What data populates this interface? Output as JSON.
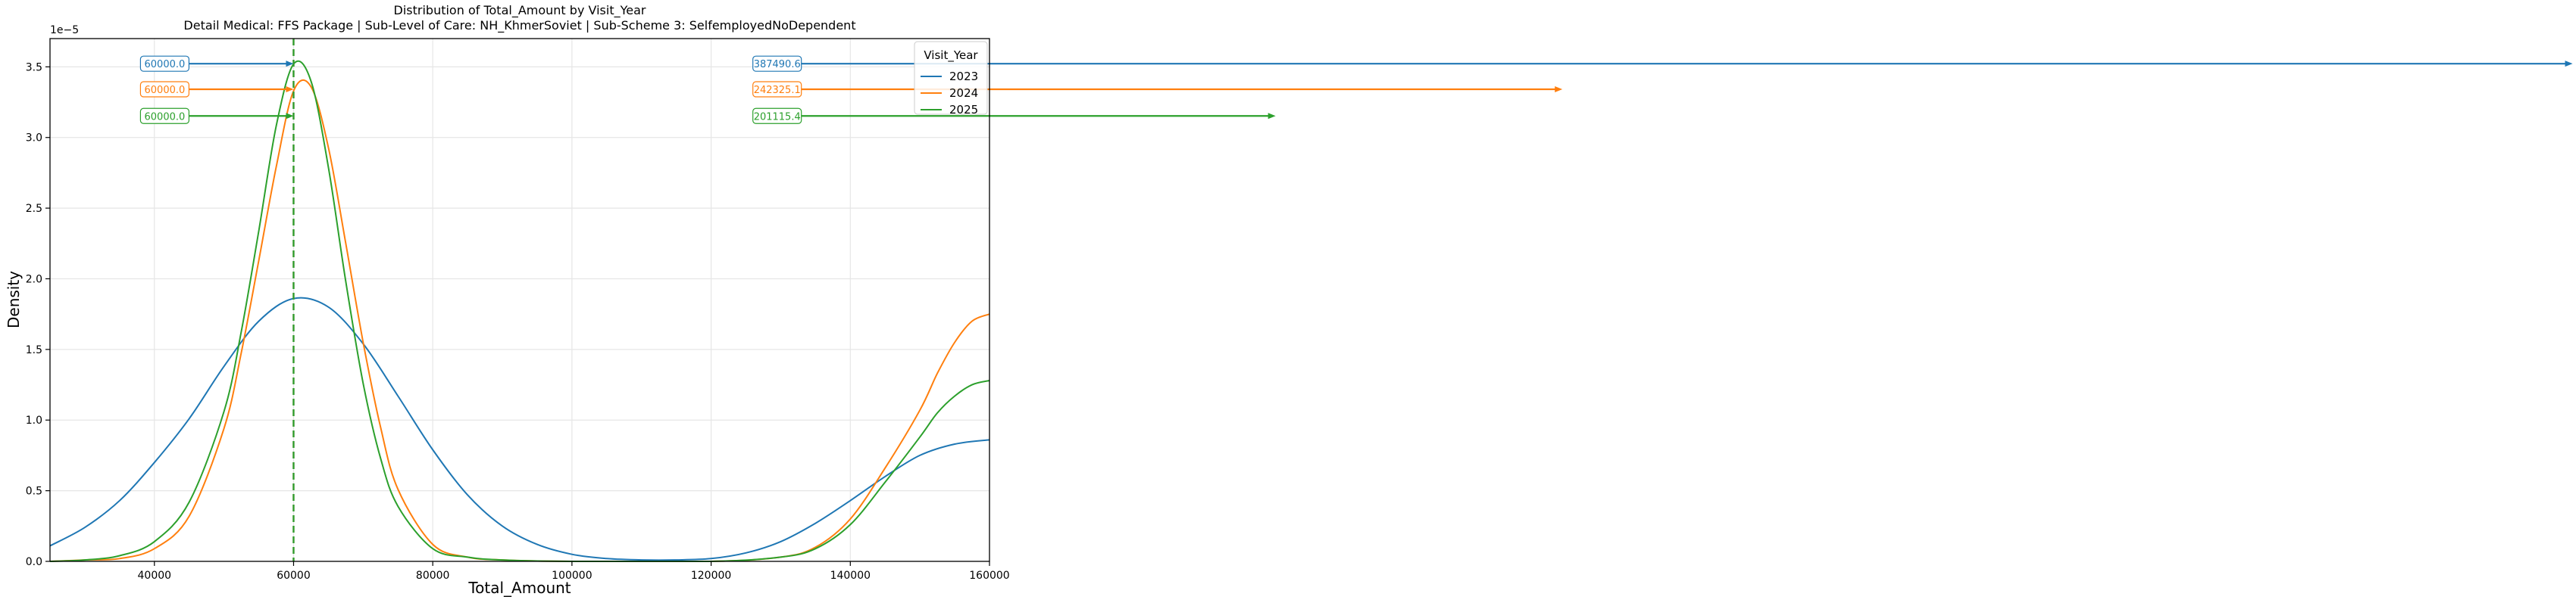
{
  "chart_data": {
    "type": "line",
    "title": "Distribution of Total_Amount by Visit_Year",
    "subtitle": "Detail Medical: FFS Package | Sub-Level of Care: NH_KhmerSoviet | Sub-Scheme 3: SelfemployedNoDependent",
    "xlabel": "Total_Amount",
    "ylabel": "Density",
    "y_scale_label": "1e−5",
    "xlim": [
      25000,
      160000
    ],
    "ylim": [
      0,
      3.7e-05
    ],
    "x_ticks": [
      40000,
      60000,
      80000,
      100000,
      120000,
      140000,
      160000
    ],
    "y_ticks": [
      0.0,
      0.5,
      1.0,
      1.5,
      2.0,
      2.5,
      3.0,
      3.5
    ],
    "x_tick_labels": [
      "40000",
      "60000",
      "80000",
      "100000",
      "120000",
      "140000",
      "160000"
    ],
    "y_tick_labels": [
      "0.0",
      "0.5",
      "1.0",
      "1.5",
      "2.0",
      "2.5",
      "3.0",
      "3.5"
    ],
    "grid": true,
    "legend": {
      "title": "Visit_Year",
      "placement": "top-right"
    },
    "median_line_x": 60000,
    "series": [
      {
        "name": "2023",
        "color": "#1f77b4",
        "x": [
          25000,
          30000,
          35000,
          40000,
          45000,
          50000,
          55000,
          60000,
          65000,
          70000,
          75000,
          80000,
          85000,
          90000,
          95000,
          100000,
          105000,
          110000,
          115000,
          120000,
          125000,
          130000,
          135000,
          140000,
          145000,
          150000,
          155000,
          160000
        ],
        "y": [
          1.1e-06,
          2.4e-06,
          4.3e-06,
          7e-06,
          1.01e-05,
          1.38e-05,
          1.7e-05,
          1.86e-05,
          1.8e-05,
          1.54e-05,
          1.17e-05,
          7.9e-06,
          4.7e-06,
          2.5e-06,
          1.2e-06,
          5e-07,
          2e-07,
          1e-07,
          1e-07,
          2e-07,
          6e-07,
          1.4e-06,
          2.7e-06,
          4.3e-06,
          6e-06,
          7.5e-06,
          8.3e-06,
          8.6e-06
        ]
      },
      {
        "name": "2024",
        "color": "#ff7f0e",
        "x": [
          25000,
          30000,
          35000,
          40000,
          45000,
          50000,
          52500,
          55000,
          57500,
          60000,
          62500,
          65000,
          67500,
          70000,
          72500,
          75000,
          80000,
          85000,
          90000,
          100000,
          120000,
          130000,
          135000,
          140000,
          145000,
          150000,
          152500,
          155000,
          157500,
          160000
        ],
        "y": [
          0,
          1e-07,
          2e-07,
          9e-07,
          3.2e-06,
          9.4e-06,
          1.48e-05,
          2.13e-05,
          2.79e-05,
          3.33e-05,
          3.36e-05,
          2.93e-05,
          2.25e-05,
          1.55e-05,
          9.5e-06,
          5.1e-06,
          1.2e-06,
          3e-07,
          1e-07,
          0,
          0,
          3e-07,
          1e-06,
          3e-06,
          6.6e-06,
          1.07e-05,
          1.33e-05,
          1.55e-05,
          1.7e-05,
          1.75e-05
        ]
      },
      {
        "name": "2025",
        "color": "#2ca02c",
        "x": [
          25000,
          30000,
          35000,
          40000,
          45000,
          50000,
          52500,
          55000,
          57500,
          60000,
          62500,
          65000,
          67500,
          70000,
          72500,
          75000,
          80000,
          85000,
          90000,
          100000,
          120000,
          130000,
          135000,
          140000,
          145000,
          150000,
          152500,
          155000,
          157500,
          160000
        ],
        "y": [
          0,
          1e-07,
          4e-07,
          1.4e-06,
          4.2e-06,
          1.06e-05,
          1.63e-05,
          2.34e-05,
          3.08e-05,
          3.52e-05,
          3.4e-05,
          2.79e-05,
          1.98e-05,
          1.26e-05,
          7.3e-06,
          3.9e-06,
          9e-07,
          3e-07,
          1e-07,
          0,
          0,
          3e-07,
          9e-07,
          2.6e-06,
          5.6e-06,
          8.8e-06,
          1.05e-05,
          1.17e-05,
          1.25e-05,
          1.28e-05
        ]
      }
    ],
    "annotations": [
      {
        "series": "2023",
        "label": "60000.0",
        "x": 60000,
        "y_frac": 0.952
      },
      {
        "series": "2024",
        "label": "60000.0",
        "x": 60000,
        "y_frac": 0.903
      },
      {
        "series": "2025",
        "label": "60000.0",
        "x": 60000,
        "y_frac": 0.852
      },
      {
        "series": "2023",
        "label": "387490.6",
        "x": 387490.6,
        "y_frac": 0.952
      },
      {
        "series": "2024",
        "label": "242325.1",
        "x": 242325.1,
        "y_frac": 0.903
      },
      {
        "series": "2025",
        "label": "201115.4",
        "x": 201115.4,
        "y_frac": 0.852
      }
    ]
  }
}
